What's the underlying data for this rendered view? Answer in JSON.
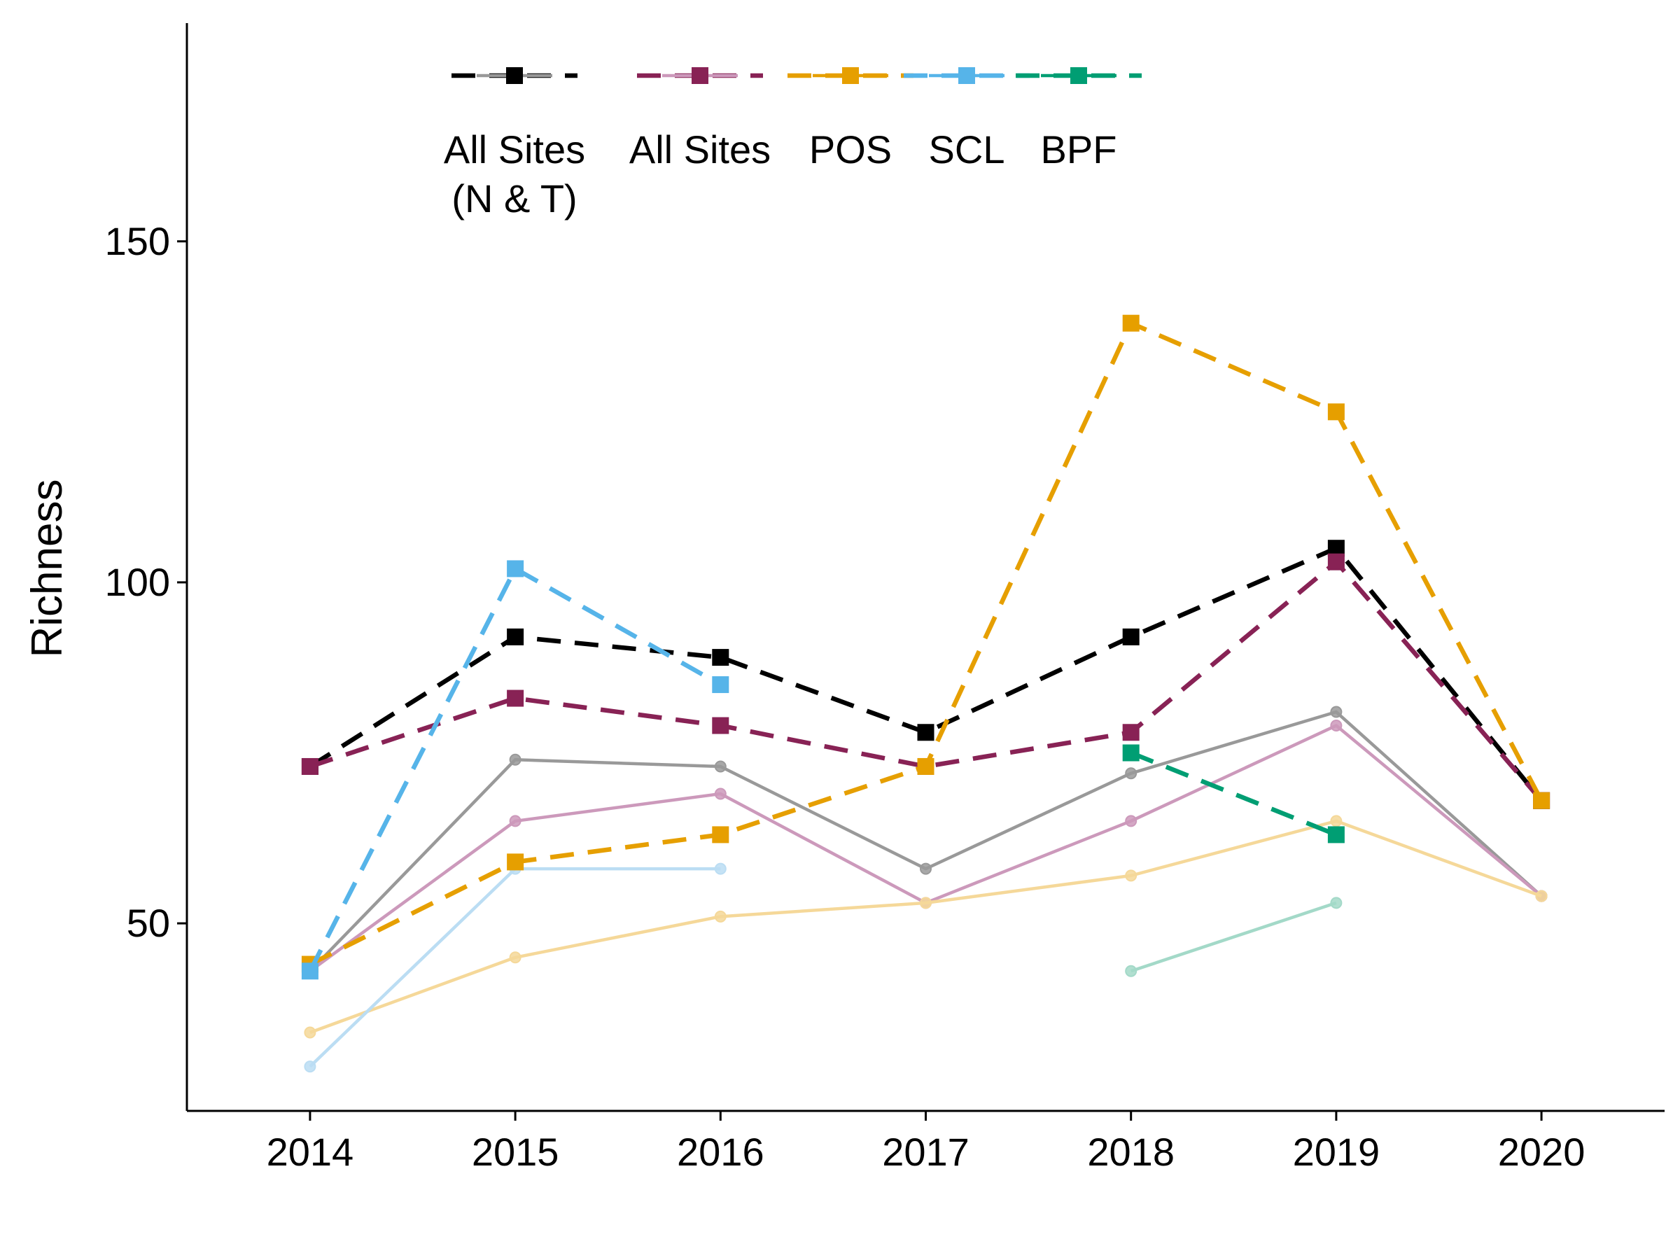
{
  "chart_data": {
    "type": "line",
    "title": "",
    "xlabel": "",
    "ylabel": "Richness",
    "x": [
      2014,
      2015,
      2016,
      2017,
      2018,
      2019,
      2020
    ],
    "xlim": [
      2013.4,
      2020.6
    ],
    "ylim": [
      22.5,
      182
    ],
    "yticks": [
      50,
      100,
      150
    ],
    "grid": false,
    "legend_position": "top",
    "series": [
      {
        "name": "All Sites\n(N & T)",
        "key": "all_nt",
        "color": "#000000",
        "style": "dashed-square",
        "values": [
          73,
          92,
          89,
          78,
          92,
          105,
          68
        ]
      },
      {
        "key": "all_nt_solid",
        "color": "#999999",
        "style": "solid-dot",
        "values": [
          43,
          74,
          73,
          58,
          72,
          81,
          54
        ]
      },
      {
        "name": "All Sites",
        "key": "all",
        "color": "#882255",
        "style": "dashed-square",
        "values": [
          73,
          83,
          79,
          73,
          78,
          103,
          68
        ]
      },
      {
        "key": "all_solid",
        "color": "#CC99BB",
        "style": "solid-dot",
        "values": [
          43,
          65,
          69,
          53,
          65,
          79,
          54
        ]
      },
      {
        "name": "POS",
        "key": "pos",
        "color": "#E69F00",
        "style": "dashed-square",
        "values": [
          44,
          59,
          63,
          73,
          138,
          125,
          68
        ]
      },
      {
        "key": "pos_solid",
        "color": "#F5D899",
        "style": "solid-dot",
        "values": [
          34,
          45,
          51,
          53,
          57,
          65,
          54
        ]
      },
      {
        "name": "SCL",
        "key": "scl",
        "color": "#56B4E9",
        "style": "dashed-square",
        "values": [
          43,
          102,
          85,
          null,
          null,
          null,
          null
        ]
      },
      {
        "key": "scl_solid",
        "color": "#BBDDF3",
        "style": "solid-dot",
        "values": [
          29,
          58,
          58,
          null,
          null,
          null,
          null
        ]
      },
      {
        "name": "BPF",
        "key": "bpf",
        "color": "#009E73",
        "style": "dashed-square",
        "values": [
          null,
          null,
          null,
          null,
          75,
          63,
          null
        ]
      },
      {
        "key": "bpf_solid",
        "color": "#A3D9C8",
        "style": "solid-dot",
        "values": [
          null,
          null,
          null,
          null,
          43,
          53,
          null
        ]
      }
    ],
    "legend": [
      {
        "label": "All Sites\n(N & T)",
        "line_color": "#000000",
        "inner_color": "#999999",
        "marker_color": "#000000"
      },
      {
        "label": "All Sites",
        "line_color": "#882255",
        "inner_color": "#CC99BB",
        "marker_color": "#882255"
      },
      {
        "label": "POS",
        "line_color": "#E69F00",
        "inner_color": "#E69F00",
        "marker_color": "#E69F00"
      },
      {
        "label": "SCL",
        "line_color": "#56B4E9",
        "inner_color": "#56B4E9",
        "marker_color": "#56B4E9"
      },
      {
        "label": "BPF",
        "line_color": "#009E73",
        "inner_color": "#009E73",
        "marker_color": "#009E73"
      }
    ]
  }
}
